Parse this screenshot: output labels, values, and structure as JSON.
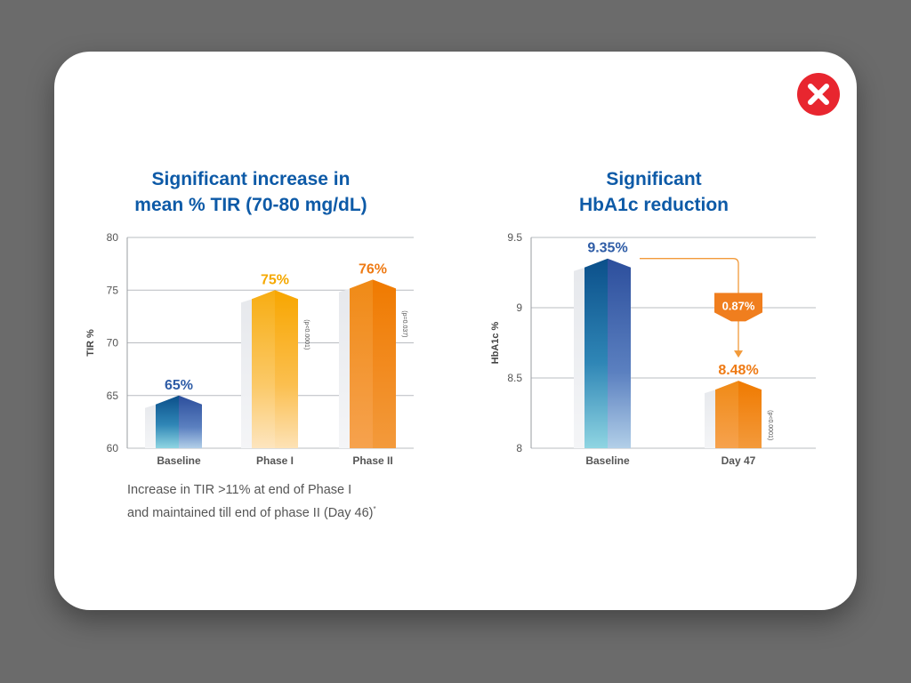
{
  "colors": {
    "title": "#0d5aa7",
    "blue_label": "#2e5ca6",
    "yellow_label": "#f5a800",
    "orange_label": "#ee7a14",
    "close": "#e8262f"
  },
  "close_icon": "close-icon",
  "charts": {
    "tir": {
      "title_line1": "Significant increase in",
      "title_line2": "mean % TIR (70-80 mg/dL)",
      "caption_line1": "Increase in TIR >11% at end of Phase I",
      "caption_line2": "and maintained till end of phase II (Day 46)",
      "caption_sup": "*"
    },
    "hba1c": {
      "title_line1": "Significant",
      "title_line2": "HbA1c reduction",
      "change_badge": "0.87%"
    }
  },
  "chart_data": [
    {
      "type": "bar",
      "title": "Significant increase in mean % TIR (70-80 mg/dL)",
      "ylabel": "TIR %",
      "ylim": [
        60,
        80
      ],
      "yticks": [
        "60",
        "65",
        "70",
        "75",
        "80"
      ],
      "categories": [
        "Baseline",
        "Phase I",
        "Phase II"
      ],
      "values": [
        65,
        75,
        76
      ],
      "value_labels": [
        "65%",
        "75%",
        "76%"
      ],
      "annotations": [
        "",
        "(p<0.0001)",
        "(p=0.037)"
      ],
      "grid": true
    },
    {
      "type": "bar",
      "title": "Significant HbA1c reduction",
      "ylabel": "HbA1c %",
      "ylim": [
        8,
        9.5
      ],
      "yticks": [
        "8",
        "8.5",
        "9",
        "9.5"
      ],
      "categories": [
        "Baseline",
        "Day 47"
      ],
      "values": [
        9.35,
        8.48
      ],
      "value_labels": [
        "9.35%",
        "8.48%"
      ],
      "annotations": [
        "",
        "(p<0.0001)"
      ],
      "change_label": "0.87%",
      "grid": true
    }
  ]
}
